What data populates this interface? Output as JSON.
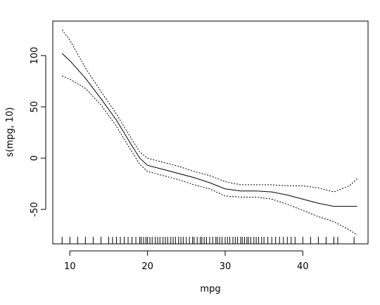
{
  "chart_data": {
    "type": "line",
    "x_label": "mpg",
    "y_label": "s(mpg, 10)",
    "x": [
      9,
      10,
      12,
      14,
      16,
      18,
      19,
      20,
      22,
      24,
      26,
      28,
      30,
      32,
      34,
      36,
      38,
      40,
      42,
      44,
      46,
      47
    ],
    "series": [
      {
        "name": "fit",
        "color": "#000000",
        "dash": "solid",
        "values": [
          102,
          95,
          78,
          58,
          37,
          12,
          0,
          -7,
          -11,
          -15,
          -19,
          -24,
          -30,
          -32,
          -32,
          -33,
          -36,
          -40,
          -44,
          -47,
          -47,
          -47
        ]
      },
      {
        "name": "upper",
        "color": "#000000",
        "dash": "dotted",
        "values": [
          125,
          115,
          88,
          65,
          43,
          18,
          6,
          0,
          -4,
          -8,
          -13,
          -17,
          -23,
          -26,
          -26,
          -26,
          -27,
          -27,
          -29,
          -33,
          -27,
          -20
        ]
      },
      {
        "name": "lower",
        "color": "#000000",
        "dash": "dotted",
        "values": [
          80,
          77,
          68,
          52,
          31,
          6,
          -6,
          -13,
          -17,
          -21,
          -26,
          -30,
          -37,
          -38,
          -38,
          -40,
          -45,
          -51,
          -57,
          -62,
          -70,
          -75
        ]
      }
    ],
    "rug": [
      9,
      10,
      11,
      12,
      13,
      14,
      15,
      15.5,
      16,
      16.5,
      17,
      17.5,
      18,
      18.5,
      19,
      19.2,
      19.5,
      19.8,
      20,
      20.3,
      20.6,
      21,
      21.3,
      21.6,
      22,
      22.3,
      22.6,
      23,
      23.3,
      23.6,
      24,
      24.3,
      24.6,
      25,
      25.4,
      25.8,
      26,
      26.4,
      26.8,
      27,
      27.3,
      27.6,
      28,
      28.4,
      28.8,
      29,
      29.3,
      29.6,
      30,
      30.3,
      30.6,
      31,
      31.3,
      31.6,
      32,
      32.2,
      32.5,
      32.8,
      33,
      33.3,
      33.7,
      34,
      34.3,
      34.7,
      35,
      35.5,
      36,
      36.5,
      37,
      37.5,
      38,
      38.5,
      39,
      40,
      41,
      42,
      43,
      44,
      44.5,
      46.6
    ],
    "xlim": [
      7.8,
      48.4
    ],
    "ylim": [
      -83.6,
      133.6
    ],
    "xticks": [
      10,
      20,
      30,
      40
    ],
    "yticks": [
      -50,
      0,
      50,
      100
    ]
  }
}
